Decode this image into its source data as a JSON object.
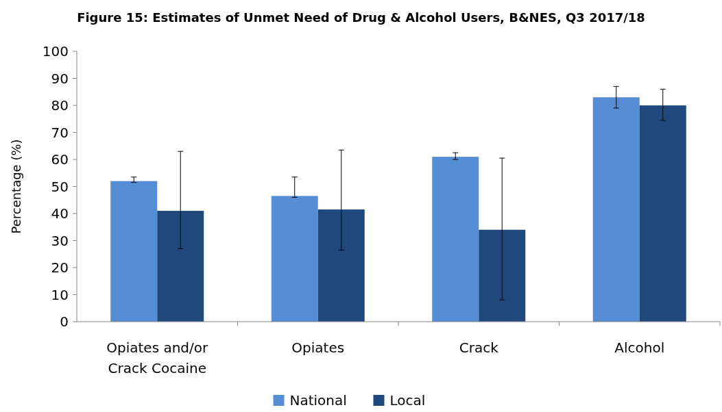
{
  "chart_data": {
    "type": "bar",
    "title": "Figure 15: Estimates of Unmet Need of Drug & Alcohol Users, B&NES, Q3 2017/18",
    "ylabel": "Percentage (%)",
    "categories": [
      "Opiates and/or Crack Cocaine",
      "Opiates",
      "Crack",
      "Alcohol"
    ],
    "series": [
      {
        "name": "National",
        "color": "#558ed5",
        "values": [
          52,
          46.5,
          61,
          83
        ],
        "errors": [
          [
            51.5,
            53.5
          ],
          [
            46,
            53.5
          ],
          [
            60,
            62.5
          ],
          [
            79,
            87
          ]
        ]
      },
      {
        "name": "Local",
        "color": "#1f497d",
        "values": [
          41,
          41.5,
          34,
          80
        ],
        "errors": [
          [
            27,
            63
          ],
          [
            26.5,
            63.5
          ],
          [
            8,
            60.5
          ],
          [
            74.5,
            86
          ]
        ]
      }
    ],
    "ylim": [
      0,
      100
    ],
    "yticks": [
      0,
      10,
      20,
      30,
      40,
      50,
      60,
      70,
      80,
      90,
      100
    ],
    "grid": false,
    "legend": "bottom"
  }
}
